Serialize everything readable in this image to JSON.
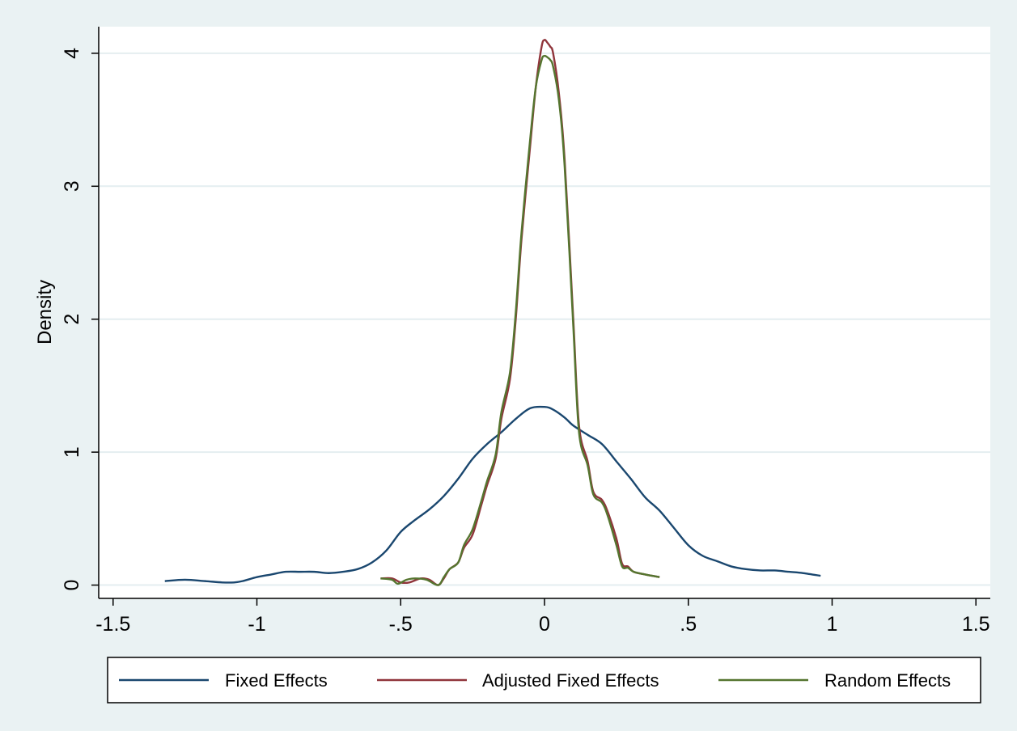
{
  "chart_data": {
    "type": "line",
    "title": "",
    "xlabel": "",
    "ylabel": "Density",
    "xlim": [
      -1.55,
      1.55
    ],
    "ylim": [
      -0.1,
      4.2
    ],
    "xticks": [
      -1.5,
      -1,
      -0.5,
      0,
      0.5,
      1,
      1.5
    ],
    "xtick_labels": [
      "-1.5",
      "-1",
      "-.5",
      "0",
      ".5",
      "1",
      "1.5"
    ],
    "yticks": [
      0,
      1,
      2,
      3,
      4
    ],
    "ytick_labels": [
      "0",
      "1",
      "2",
      "3",
      "4"
    ],
    "grid": "horizontal",
    "legend_position": "bottom",
    "colors": {
      "page_background": "#eaf2f3",
      "plot_background": "#ffffff",
      "grid": "#e4eef0",
      "axis": "#000000"
    },
    "series": [
      {
        "name": "Fixed Effects",
        "color": "#1a476f",
        "x": [
          -1.32,
          -1.25,
          -1.18,
          -1.12,
          -1.08,
          -1.05,
          -1.0,
          -0.95,
          -0.9,
          -0.85,
          -0.8,
          -0.75,
          -0.7,
          -0.65,
          -0.6,
          -0.55,
          -0.5,
          -0.45,
          -0.4,
          -0.35,
          -0.3,
          -0.25,
          -0.2,
          -0.15,
          -0.1,
          -0.05,
          0.0,
          0.03,
          0.07,
          0.1,
          0.15,
          0.2,
          0.25,
          0.3,
          0.35,
          0.4,
          0.45,
          0.5,
          0.55,
          0.6,
          0.65,
          0.7,
          0.75,
          0.8,
          0.85,
          0.9,
          0.96
        ],
        "y": [
          0.03,
          0.04,
          0.03,
          0.02,
          0.02,
          0.03,
          0.06,
          0.08,
          0.1,
          0.1,
          0.1,
          0.09,
          0.1,
          0.12,
          0.17,
          0.26,
          0.4,
          0.49,
          0.57,
          0.67,
          0.8,
          0.95,
          1.06,
          1.15,
          1.25,
          1.33,
          1.34,
          1.32,
          1.26,
          1.2,
          1.13,
          1.06,
          0.93,
          0.8,
          0.66,
          0.56,
          0.43,
          0.3,
          0.22,
          0.18,
          0.14,
          0.12,
          0.11,
          0.11,
          0.1,
          0.09,
          0.07
        ]
      },
      {
        "name": "Adjusted Fixed Effects",
        "color": "#90353b",
        "x": [
          -0.57,
          -0.53,
          -0.5,
          -0.47,
          -0.43,
          -0.4,
          -0.37,
          -0.35,
          -0.33,
          -0.3,
          -0.28,
          -0.25,
          -0.22,
          -0.2,
          -0.17,
          -0.15,
          -0.12,
          -0.1,
          -0.08,
          -0.05,
          -0.03,
          -0.01,
          0.0,
          0.01,
          0.02,
          0.03,
          0.05,
          0.07,
          0.1,
          0.12,
          0.15,
          0.17,
          0.2,
          0.22,
          0.25,
          0.27,
          0.29,
          0.31,
          0.35,
          0.4
        ],
        "y": [
          0.05,
          0.05,
          0.02,
          0.02,
          0.05,
          0.04,
          0.0,
          0.05,
          0.12,
          0.17,
          0.28,
          0.38,
          0.6,
          0.75,
          0.95,
          1.25,
          1.55,
          2.0,
          2.6,
          3.3,
          3.75,
          4.05,
          4.1,
          4.08,
          4.05,
          4.0,
          3.7,
          3.2,
          2.0,
          1.2,
          0.93,
          0.7,
          0.64,
          0.55,
          0.35,
          0.16,
          0.14,
          0.1,
          0.08,
          0.06
        ]
      },
      {
        "name": "Random Effects",
        "color": "#55752f",
        "x": [
          -0.57,
          -0.53,
          -0.51,
          -0.48,
          -0.45,
          -0.41,
          -0.37,
          -0.35,
          -0.33,
          -0.3,
          -0.28,
          -0.25,
          -0.22,
          -0.2,
          -0.17,
          -0.15,
          -0.12,
          -0.1,
          -0.08,
          -0.05,
          -0.03,
          -0.01,
          0.0,
          0.01,
          0.02,
          0.03,
          0.05,
          0.07,
          0.1,
          0.12,
          0.15,
          0.17,
          0.2,
          0.22,
          0.25,
          0.27,
          0.29,
          0.31,
          0.35,
          0.4
        ],
        "y": [
          0.05,
          0.04,
          0.01,
          0.04,
          0.05,
          0.04,
          0.0,
          0.06,
          0.12,
          0.17,
          0.3,
          0.42,
          0.63,
          0.78,
          0.98,
          1.3,
          1.6,
          2.05,
          2.65,
          3.35,
          3.75,
          3.95,
          3.98,
          3.97,
          3.95,
          3.9,
          3.65,
          3.15,
          1.95,
          1.15,
          0.9,
          0.68,
          0.62,
          0.52,
          0.3,
          0.14,
          0.13,
          0.1,
          0.08,
          0.06
        ]
      }
    ]
  }
}
